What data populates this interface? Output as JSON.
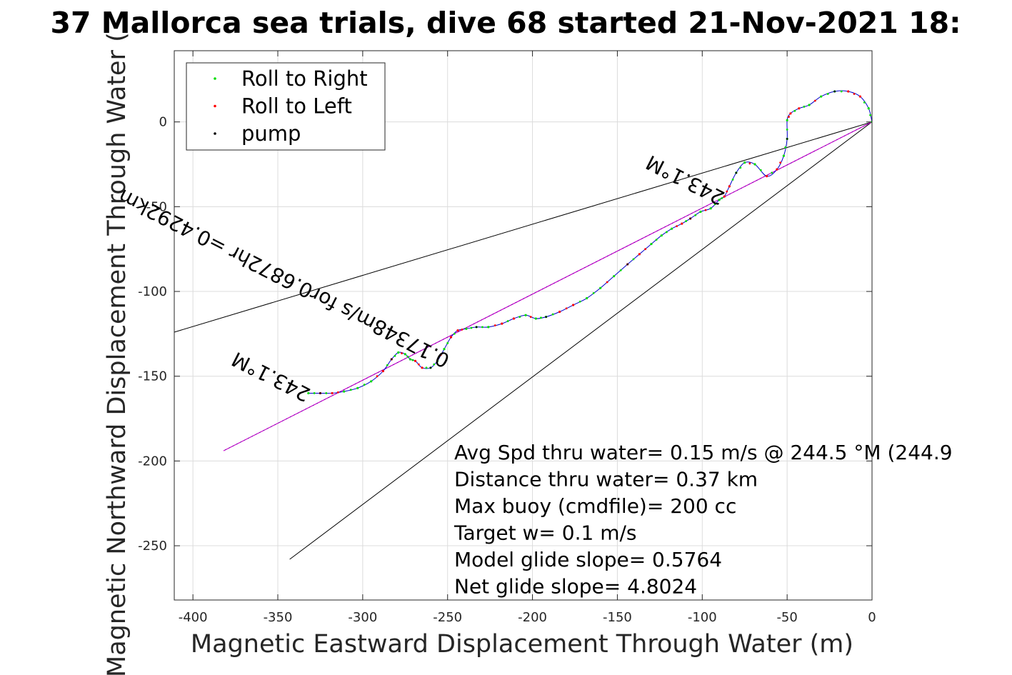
{
  "chart_data": {
    "type": "scatter",
    "title": "37 Mallorca sea trials, dive 68 started 21-Nov-2021 18:",
    "xlabel": "Magnetic Eastward Displacement Through Water (m)",
    "ylabel": "Magnetic Northward Displacement Through Water (",
    "xlim": [
      -411,
      0
    ],
    "ylim": [
      -282,
      42
    ],
    "xticks": [
      -400,
      -350,
      -300,
      -250,
      -200,
      -150,
      -100,
      -50,
      0
    ],
    "yticks": [
      0,
      -50,
      -100,
      -150,
      -200,
      -250
    ],
    "grid": true,
    "legend": {
      "placement": "top-left",
      "entries": [
        {
          "label": "Roll to Right",
          "color": "#00dd00"
        },
        {
          "label": "Roll to Left",
          "color": "#ff0000"
        },
        {
          "label": "pump",
          "color": "#000000"
        }
      ]
    },
    "colors": {
      "track": "#0000cc",
      "mean_line": "#cc00cc",
      "envelope": "#000000"
    },
    "track": {
      "x": [
        0,
        -2,
        -7,
        -14,
        -22,
        -30,
        -37,
        -43,
        -48,
        -50,
        -50,
        -52,
        -56,
        -62,
        -69,
        -75,
        -80,
        -84,
        -87,
        -90,
        -95,
        -101,
        -107,
        -112,
        -118,
        -124,
        -130,
        -137,
        -144,
        -152,
        -160,
        -168,
        -176,
        -184,
        -192,
        -198,
        -204,
        -211,
        -218,
        -226,
        -233,
        -239,
        -244,
        -248,
        -252,
        -256,
        -260,
        -265,
        -269,
        -272,
        -275,
        -279,
        -283,
        -288,
        -295,
        -303,
        -311,
        -318,
        -325,
        -332
      ],
      "y": [
        0,
        8,
        15,
        18,
        18,
        15,
        10,
        8,
        5,
        1,
        -10,
        -20,
        -28,
        -32,
        -25,
        -24,
        -30,
        -38,
        -44,
        -46,
        -51,
        -53,
        -57,
        -60,
        -63,
        -67,
        -72,
        -78,
        -84,
        -91,
        -98,
        -104,
        -108,
        -112,
        -115,
        -116,
        -114,
        -116,
        -119,
        -121,
        -121,
        -122,
        -123,
        -127,
        -134,
        -141,
        -145,
        -145,
        -141,
        -140,
        -137,
        -136,
        -140,
        -147,
        -153,
        -157,
        -159,
        -160,
        -160,
        -160
      ]
    },
    "mean_line": {
      "x": [
        0,
        -382
      ],
      "y": [
        0,
        -194
      ]
    },
    "envelope_lines": [
      {
        "x": [
          0,
          -411
        ],
        "y": [
          0,
          -124
        ]
      },
      {
        "x": [
          0,
          -343
        ],
        "y": [
          0,
          -258
        ]
      }
    ],
    "annotations": [
      {
        "text": "243.1°M",
        "x": -330,
        "y": -158,
        "rotation_deg": 207
      },
      {
        "text": "0.17348m/s for0.6872hr =0.4292km",
        "x": -248,
        "y": -138,
        "rotation_deg": 207
      },
      {
        "text": "243.1°M",
        "x": -86,
        "y": -42,
        "rotation_deg": 207
      }
    ],
    "info_lines": [
      "Avg Spd thru water=  0.15 m/s @ 244.5 °M (244.9",
      "Distance thru water=  0.37 km",
      "Max buoy (cmdfile)= 200 cc",
      "Target w= 0.1 m/s",
      "Model glide slope= 0.5764",
      "Net glide slope= 4.8024"
    ]
  }
}
